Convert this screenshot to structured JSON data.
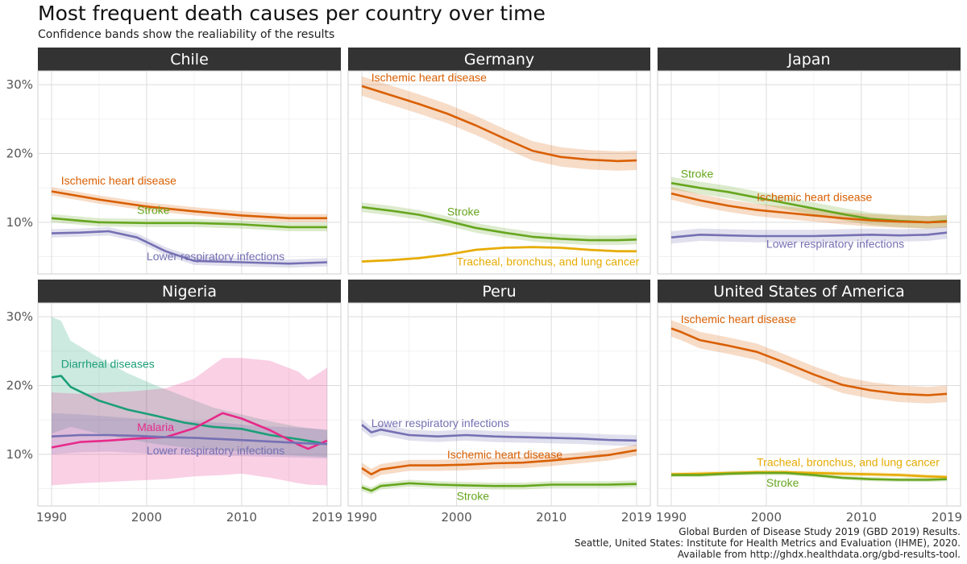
{
  "title": "Most frequent death causes per country over time",
  "subtitle": "Confidence bands show the realiability of the results",
  "caption": [
    "Global Burden of Disease Study 2019 (GBD 2019) Results.",
    "Seattle, United States: Institute for Health Metrics and Evaluation (IHME), 2020.",
    "Available from http://ghdx.healthdata.org/gbd-results-tool."
  ],
  "colors": {
    "Ischemic heart disease": "#d95f02",
    "Stroke": "#66a61e",
    "Lower respiratory infections": "#7570b3",
    "Tracheal, bronchus, and lung cancer": "#e6ab02",
    "Diarrheal diseases": "#1b9e77",
    "Malaria": "#e7298a"
  },
  "chart_data": {
    "type": "line",
    "facet_layout": "2 rows x 3 columns",
    "xlim": [
      1990,
      2019
    ],
    "x_ticks": [
      1990,
      2000,
      2010,
      2019
    ],
    "ylim": [
      0.025,
      0.32
    ],
    "y_ticks": [
      0.1,
      0.2,
      0.3
    ],
    "y_tick_labels": [
      "10%",
      "20%",
      "30%"
    ],
    "grid": true,
    "legend": "none (direct labels)",
    "panels": [
      {
        "country": "Chile",
        "series": [
          {
            "name": "Ischemic heart disease",
            "label_at": [
              1991,
              0.155
            ],
            "x": [
              1990,
              1995,
              2000,
              2005,
              2010,
              2015,
              2019
            ],
            "y": [
              0.145,
              0.133,
              0.123,
              0.116,
              0.11,
              0.106,
              0.106
            ],
            "band": 0.006
          },
          {
            "name": "Stroke",
            "label_at": [
              1999,
              0.112
            ],
            "x": [
              1990,
              1995,
              2000,
              2005,
              2010,
              2015,
              2019
            ],
            "y": [
              0.106,
              0.1,
              0.099,
              0.099,
              0.097,
              0.093,
              0.093
            ],
            "band": 0.006
          },
          {
            "name": "Lower respiratory infections",
            "label_at": [
              2000,
              0.045
            ],
            "x": [
              1990,
              1993,
              1996,
              1999,
              2002,
              2005,
              2010,
              2015,
              2019
            ],
            "y": [
              0.084,
              0.085,
              0.087,
              0.078,
              0.058,
              0.044,
              0.042,
              0.04,
              0.042
            ],
            "band": 0.006
          }
        ]
      },
      {
        "country": "Germany",
        "series": [
          {
            "name": "Ischemic heart disease",
            "label_at": [
              1991,
              0.305
            ],
            "x": [
              1990,
              1993,
              1996,
              1999,
              2002,
              2005,
              2008,
              2011,
              2014,
              2017,
              2019
            ],
            "y": [
              0.298,
              0.285,
              0.272,
              0.258,
              0.241,
              0.222,
              0.204,
              0.195,
              0.191,
              0.189,
              0.19
            ],
            "band": 0.014
          },
          {
            "name": "Stroke",
            "label_at": [
              1999,
              0.11
            ],
            "x": [
              1990,
              1993,
              1996,
              1999,
              2002,
              2005,
              2008,
              2011,
              2014,
              2017,
              2019
            ],
            "y": [
              0.122,
              0.117,
              0.111,
              0.102,
              0.092,
              0.085,
              0.079,
              0.076,
              0.074,
              0.074,
              0.075
            ],
            "band": 0.007
          },
          {
            "name": "Tracheal, bronchus, and lung cancer",
            "label_at": [
              2000,
              0.037
            ],
            "x": [
              1990,
              1993,
              1996,
              1999,
              2002,
              2005,
              2008,
              2011,
              2014,
              2017,
              2019
            ],
            "y": [
              0.043,
              0.045,
              0.048,
              0.053,
              0.06,
              0.063,
              0.064,
              0.063,
              0.06,
              0.058,
              0.058
            ],
            "band": 0.002
          }
        ]
      },
      {
        "country": "Japan",
        "series": [
          {
            "name": "Stroke",
            "label_at": [
              1991,
              0.165
            ],
            "x": [
              1990,
              1993,
              1996,
              1999,
              2002,
              2005,
              2008,
              2011,
              2014,
              2017,
              2019
            ],
            "y": [
              0.157,
              0.15,
              0.144,
              0.136,
              0.128,
              0.12,
              0.112,
              0.105,
              0.102,
              0.1,
              0.102
            ],
            "band": 0.009
          },
          {
            "name": "Ischemic heart disease",
            "label_at": [
              1999,
              0.131
            ],
            "x": [
              1990,
              1993,
              1996,
              1999,
              2002,
              2005,
              2008,
              2011,
              2014,
              2017,
              2019
            ],
            "y": [
              0.142,
              0.132,
              0.124,
              0.118,
              0.114,
              0.11,
              0.106,
              0.103,
              0.101,
              0.1,
              0.101
            ],
            "band": 0.009
          },
          {
            "name": "Lower respiratory infections",
            "label_at": [
              2000,
              0.063
            ],
            "x": [
              1990,
              1993,
              1996,
              1999,
              2002,
              2005,
              2008,
              2011,
              2014,
              2017,
              2019
            ],
            "y": [
              0.078,
              0.082,
              0.081,
              0.08,
              0.08,
              0.08,
              0.081,
              0.082,
              0.081,
              0.082,
              0.085
            ],
            "band": 0.009
          }
        ]
      },
      {
        "country": "Nigeria",
        "series": [
          {
            "name": "Diarrheal diseases",
            "label_at": [
              1991,
              0.226
            ],
            "x": [
              1990,
              1991,
              1992,
              1995,
              1998,
              2001,
              2004,
              2007,
              2010,
              2013,
              2016,
              2019
            ],
            "y": [
              0.212,
              0.214,
              0.198,
              0.178,
              0.165,
              0.156,
              0.146,
              0.14,
              0.137,
              0.128,
              0.122,
              0.115
            ],
            "band_lo": [
              0.13,
              0.135,
              0.14,
              0.13,
              0.122,
              0.115,
              0.11,
              0.106,
              0.104,
              0.1,
              0.098,
              0.096
            ],
            "band_hi": [
              0.3,
              0.294,
              0.265,
              0.24,
              0.218,
              0.2,
              0.184,
              0.168,
              0.158,
              0.148,
              0.14,
              0.135
            ]
          },
          {
            "name": "Malaria",
            "label_at": [
              1999,
              0.134
            ],
            "x": [
              1990,
              1993,
              1996,
              1999,
              2002,
              2005,
              2008,
              2010,
              2013,
              2016,
              2017,
              2019
            ],
            "y": [
              0.11,
              0.118,
              0.12,
              0.123,
              0.125,
              0.138,
              0.16,
              0.152,
              0.135,
              0.114,
              0.108,
              0.12
            ],
            "band_lo": [
              0.055,
              0.058,
              0.06,
              0.062,
              0.064,
              0.068,
              0.07,
              0.072,
              0.066,
              0.058,
              0.056,
              0.055
            ],
            "band_hi": [
              0.19,
              0.188,
              0.19,
              0.192,
              0.196,
              0.21,
              0.24,
              0.24,
              0.236,
              0.22,
              0.208,
              0.226
            ]
          },
          {
            "name": "Lower respiratory infections",
            "label_at": [
              2000,
              0.1
            ],
            "x": [
              1990,
              1993,
              1996,
              1999,
              2002,
              2005,
              2008,
              2011,
              2014,
              2017,
              2019
            ],
            "y": [
              0.126,
              0.128,
              0.128,
              0.127,
              0.125,
              0.124,
              0.122,
              0.12,
              0.118,
              0.116,
              0.115
            ],
            "band_lo": [
              0.1,
              0.103,
              0.104,
              0.102,
              0.1,
              0.099,
              0.098,
              0.097,
              0.096,
              0.095,
              0.094
            ],
            "band_hi": [
              0.16,
              0.158,
              0.155,
              0.152,
              0.15,
              0.148,
              0.146,
              0.142,
              0.14,
              0.138,
              0.136
            ]
          }
        ]
      },
      {
        "country": "Peru",
        "series": [
          {
            "name": "Lower respiratory infections",
            "label_at": [
              1991,
              0.14
            ],
            "x": [
              1990,
              1991,
              1992,
              1995,
              1998,
              2001,
              2004,
              2007,
              2010,
              2013,
              2016,
              2019
            ],
            "y": [
              0.143,
              0.132,
              0.136,
              0.128,
              0.126,
              0.128,
              0.126,
              0.125,
              0.124,
              0.123,
              0.121,
              0.12
            ],
            "band": 0.008
          },
          {
            "name": "Ischemic heart disease",
            "label_at": [
              1999,
              0.094
            ],
            "x": [
              1990,
              1991,
              1992,
              1995,
              1998,
              2001,
              2004,
              2007,
              2010,
              2013,
              2016,
              2019
            ],
            "y": [
              0.08,
              0.071,
              0.078,
              0.084,
              0.084,
              0.085,
              0.087,
              0.088,
              0.091,
              0.095,
              0.099,
              0.106
            ],
            "band": 0.008
          },
          {
            "name": "Stroke",
            "label_at": [
              2000,
              0.034
            ],
            "x": [
              1990,
              1991,
              1992,
              1995,
              1998,
              2001,
              2004,
              2007,
              2010,
              2013,
              2016,
              2019
            ],
            "y": [
              0.052,
              0.047,
              0.054,
              0.058,
              0.056,
              0.055,
              0.054,
              0.054,
              0.056,
              0.056,
              0.056,
              0.057
            ],
            "band": 0.005
          }
        ]
      },
      {
        "country": "United States of America",
        "series": [
          {
            "name": "Ischemic heart disease",
            "label_at": [
              1991,
              0.291
            ],
            "x": [
              1990,
              1991,
              1993,
              1996,
              1999,
              2002,
              2005,
              2008,
              2011,
              2014,
              2017,
              2019
            ],
            "y": [
              0.283,
              0.278,
              0.266,
              0.258,
              0.249,
              0.233,
              0.216,
              0.201,
              0.193,
              0.188,
              0.186,
              0.188
            ],
            "band": 0.012
          },
          {
            "name": "Tracheal, bronchus, and lung cancer",
            "label_at": [
              1999,
              0.083
            ],
            "x": [
              1990,
              1993,
              1996,
              1999,
              2002,
              2005,
              2008,
              2011,
              2014,
              2017,
              2019
            ],
            "y": [
              0.071,
              0.072,
              0.073,
              0.074,
              0.074,
              0.073,
              0.072,
              0.071,
              0.07,
              0.068,
              0.067
            ],
            "band": 0.003
          },
          {
            "name": "Stroke",
            "label_at": [
              2000,
              0.053
            ],
            "x": [
              1990,
              1993,
              1996,
              1999,
              2002,
              2005,
              2008,
              2011,
              2014,
              2017,
              2019
            ],
            "y": [
              0.07,
              0.07,
              0.072,
              0.073,
              0.073,
              0.07,
              0.066,
              0.064,
              0.063,
              0.063,
              0.064
            ],
            "band": 0.003
          }
        ]
      }
    ]
  }
}
